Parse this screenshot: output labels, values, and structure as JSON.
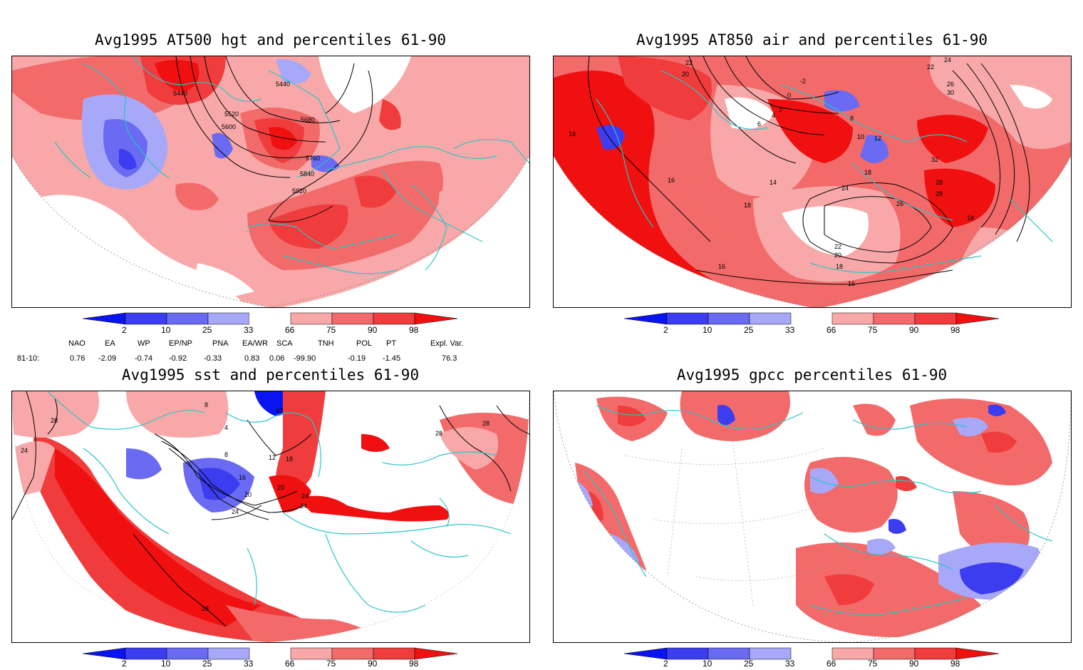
{
  "panels": [
    {
      "title": "Avg1995 AT500 hgt and percentiles 61-90",
      "contour_labels": [
        "5440",
        "5440",
        "5520",
        "5600",
        "5680",
        "5760",
        "5840",
        "5920"
      ]
    },
    {
      "title": "Avg1995 AT850 air and percentiles 61-90",
      "contour_labels": [
        "22",
        "20",
        "-2",
        "0",
        "2",
        "4",
        "6",
        "8",
        "10",
        "12",
        "14",
        "16",
        "16",
        "16",
        "16",
        "18",
        "18",
        "18",
        "18",
        "20",
        "22",
        "24",
        "26",
        "28",
        "28",
        "30",
        "32",
        "24",
        "22",
        "26"
      ]
    },
    {
      "title": "Avg1995 sst and percentiles 61-90",
      "contour_labels": [
        "28",
        "24",
        "8",
        "4",
        "8",
        "12",
        "16",
        "20",
        "20",
        "24",
        "24",
        "28",
        "28",
        "28",
        "10",
        "18",
        "24"
      ]
    },
    {
      "title": "Avg1995 gpcc percentiles 61-90",
      "contour_labels": []
    }
  ],
  "colorbar": {
    "labels": [
      "2",
      "10",
      "25",
      "33",
      "66",
      "75",
      "90",
      "98"
    ],
    "colors": {
      "deep_blue": "#0a14f0",
      "blue2": "#3c3cf0",
      "blue3": "#6a6af2",
      "blue4": "#a8a8f8",
      "red1": "#f8a8a8",
      "red2": "#f26a6a",
      "red3": "#f03c3c",
      "red4": "#f01010"
    }
  },
  "indices": {
    "headers": [
      "NAO",
      "EA",
      "WP",
      "EP/NP",
      "PNA",
      "EA/WR",
      "SCA",
      "TNH",
      "POL",
      "PT",
      "Expl. Var."
    ],
    "row_label": "81-10:",
    "values": [
      "0.76",
      "-2.09",
      "-0.74",
      "-0.92",
      "-0.33",
      "0.83",
      "0.06",
      "-99.90",
      "-0.19",
      "-1.45",
      "76.3"
    ]
  },
  "colors": {
    "coast": "#29c6c6",
    "contour": "#000000",
    "grid": "#888888"
  }
}
